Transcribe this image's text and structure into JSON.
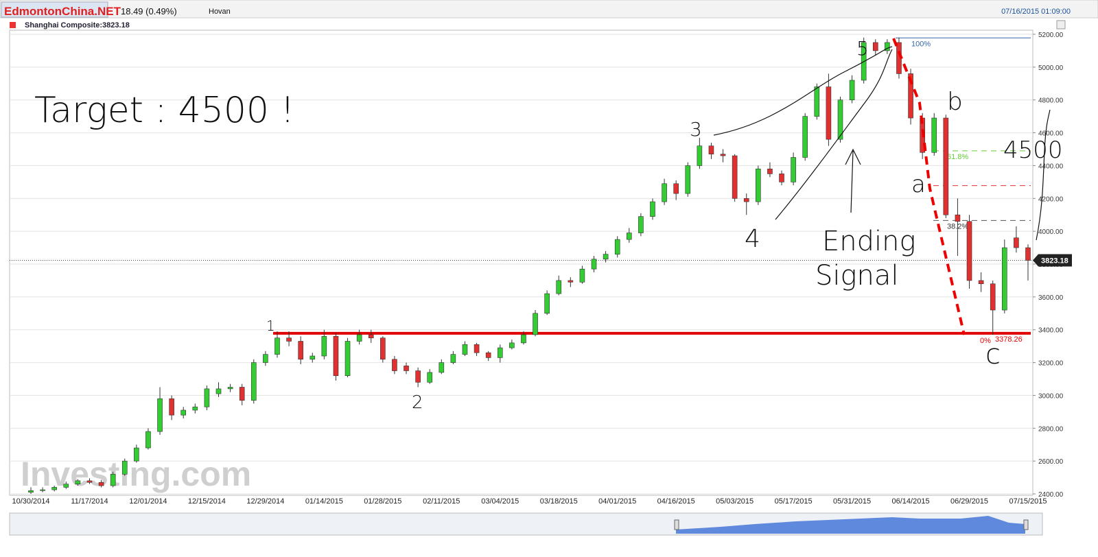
{
  "header": {
    "logo": "EdmontonChina.NET",
    "change": "18.49 (0.49%)",
    "user": "Hovan",
    "timestamp": "07/16/2015 01:09:00",
    "instrument": "Shanghai Composite:3823.18"
  },
  "chart_data": {
    "type": "candlestick",
    "categories": [
      "10/30/2014",
      null,
      null,
      null,
      null,
      "11/17/2014",
      null,
      null,
      null,
      null,
      "12/01/2014",
      null,
      null,
      null,
      null,
      "12/15/2014",
      null,
      null,
      null,
      null,
      "12/29/2014",
      null,
      null,
      null,
      null,
      "01/14/2015",
      null,
      null,
      null,
      null,
      "01/28/2015",
      null,
      null,
      null,
      null,
      "02/11/2015",
      null,
      null,
      null,
      null,
      "03/04/2015",
      null,
      null,
      null,
      null,
      "03/18/2015",
      null,
      null,
      null,
      null,
      "04/01/2015",
      null,
      null,
      null,
      null,
      "04/16/2015",
      null,
      null,
      null,
      null,
      "05/03/2015",
      null,
      null,
      null,
      null,
      "05/17/2015",
      null,
      null,
      null,
      null,
      "05/31/2015",
      null,
      null,
      null,
      null,
      "06/14/2015",
      null,
      null,
      null,
      null,
      "06/29/2015",
      null,
      null,
      null,
      null,
      "07/15/2015"
    ],
    "open": [
      2410,
      2420,
      2425,
      2440,
      2460,
      2480,
      2470,
      2450,
      2520,
      2600,
      2680,
      2780,
      2980,
      2880,
      2910,
      2930,
      3010,
      3040,
      3050,
      2970,
      3200,
      3250,
      3350,
      3330,
      3220,
      3240,
      3360,
      3120,
      3330,
      3370,
      3350,
      3220,
      3180,
      3150,
      3080,
      3140,
      3200,
      3250,
      3310,
      3260,
      3230,
      3290,
      3320,
      3370,
      3500,
      3620,
      3700,
      3690,
      3770,
      3830,
      3860,
      3950,
      3990,
      4090,
      4180,
      4290,
      4230,
      4400,
      4520,
      4470,
      4460,
      4200,
      4180,
      4380,
      4350,
      4300,
      4450,
      4700,
      4880,
      4560,
      4800,
      4920,
      5150,
      5100,
      5150,
      4960,
      4690,
      4480,
      4690,
      4100,
      4060,
      3700,
      3680,
      3520,
      3960,
      3900
    ],
    "high": [
      2440,
      2440,
      2450,
      2475,
      2490,
      2495,
      2485,
      2535,
      2615,
      2700,
      2800,
      3050,
      3000,
      2930,
      2950,
      3060,
      3080,
      3070,
      3070,
      3220,
      3270,
      3390,
      3390,
      3360,
      3260,
      3400,
      3380,
      3350,
      3400,
      3400,
      3360,
      3240,
      3200,
      3170,
      3160,
      3220,
      3270,
      3330,
      3320,
      3270,
      3310,
      3340,
      3390,
      3520,
      3640,
      3730,
      3720,
      3790,
      3850,
      3880,
      3970,
      4020,
      4110,
      4200,
      4320,
      4310,
      4420,
      4570,
      4540,
      4500,
      4470,
      4230,
      4400,
      4420,
      4370,
      4480,
      4720,
      4900,
      4960,
      4820,
      4950,
      5180,
      5170,
      5170,
      5180,
      4990,
      4720,
      4720,
      4710,
      4200,
      4100,
      3750,
      3700,
      3950,
      4030,
      3920
    ],
    "low": [
      2400,
      2410,
      2415,
      2430,
      2450,
      2460,
      2440,
      2440,
      2510,
      2590,
      2670,
      2760,
      2850,
      2860,
      2890,
      2910,
      2990,
      3020,
      2940,
      2950,
      3180,
      3230,
      3300,
      3190,
      3200,
      3220,
      3090,
      3110,
      3310,
      3320,
      3200,
      3130,
      3130,
      3050,
      3070,
      3130,
      3190,
      3240,
      3240,
      3210,
      3200,
      3280,
      3310,
      3360,
      3490,
      3610,
      3660,
      3680,
      3750,
      3810,
      3840,
      3930,
      3970,
      4070,
      4160,
      4190,
      4210,
      4380,
      4440,
      4420,
      4180,
      4100,
      4160,
      4330,
      4280,
      4280,
      4430,
      4680,
      4520,
      4540,
      4780,
      4900,
      5070,
      5080,
      4930,
      4650,
      4440,
      4460,
      4080,
      3850,
      3650,
      3630,
      3370,
      3500,
      3870,
      3700
    ],
    "close": [
      2420,
      2425,
      2440,
      2460,
      2480,
      2470,
      2450,
      2520,
      2600,
      2680,
      2780,
      2980,
      2880,
      2910,
      2930,
      3040,
      3040,
      3050,
      2970,
      3200,
      3250,
      3350,
      3330,
      3220,
      3240,
      3360,
      3120,
      3330,
      3370,
      3350,
      3220,
      3150,
      3150,
      3080,
      3140,
      3200,
      3250,
      3310,
      3260,
      3230,
      3290,
      3320,
      3370,
      3500,
      3620,
      3700,
      3690,
      3770,
      3830,
      3860,
      3950,
      3990,
      4090,
      4180,
      4290,
      4230,
      4400,
      4520,
      4470,
      4460,
      4200,
      4180,
      4380,
      4350,
      4300,
      4450,
      4700,
      4880,
      4560,
      4800,
      4920,
      5150,
      5100,
      5150,
      4960,
      4690,
      4480,
      4690,
      4100,
      4060,
      3700,
      3680,
      3520,
      3900,
      3900,
      3823
    ],
    "up_color": "#33cc33",
    "down_color": "#e03030",
    "ylim": [
      2400,
      5200
    ],
    "yticks": [
      {
        "value": 2400,
        "label": "2400.00"
      },
      {
        "value": 2600,
        "label": "2600.00"
      },
      {
        "value": 2800,
        "label": "2800.00"
      },
      {
        "value": 3000,
        "label": "3000.00"
      },
      {
        "value": 3200,
        "label": "3200.00"
      },
      {
        "value": 3400,
        "label": "3400.00"
      },
      {
        "value": 3600,
        "label": "3600.00"
      },
      {
        "value": 3800,
        "label": "3800.00"
      },
      {
        "value": 4000,
        "label": "4000.00"
      },
      {
        "value": 4200,
        "label": "4200.00"
      },
      {
        "value": 4400,
        "label": "4400.00"
      },
      {
        "value": 4600,
        "label": "4600.00"
      },
      {
        "value": 4800,
        "label": "4800.00"
      },
      {
        "value": 5000,
        "label": "5000.00"
      },
      {
        "value": 5200,
        "label": "5200.00"
      }
    ],
    "grid": true,
    "last_price": {
      "value": 3823.18,
      "label": "3823.18"
    },
    "fib_levels": [
      {
        "label": "100%",
        "value": 5178,
        "color": "#3366aa",
        "dash": false
      },
      {
        "label": "61.8%",
        "value": 4490,
        "color": "#66cc33",
        "dash": true
      },
      {
        "value": 4278,
        "color": "#e03030",
        "dash": true
      },
      {
        "label": "38.2%",
        "value": 4066,
        "color": "#555555",
        "dash": true
      },
      {
        "label": "0%",
        "value": 3378.26,
        "value_label": "3378.26",
        "color": "#e00000",
        "dash": false
      }
    ],
    "annotations": {
      "target": "Target : 4500 !",
      "wave1": "1",
      "wave2": "2",
      "wave3": "3",
      "wave4": "4",
      "wave5": "5",
      "wave_a": "a",
      "wave_b": "b",
      "wave_c": "c",
      "target2": "4500",
      "ending1": "Ending",
      "ending2": "Signal"
    },
    "watermark": "Investing.com"
  }
}
